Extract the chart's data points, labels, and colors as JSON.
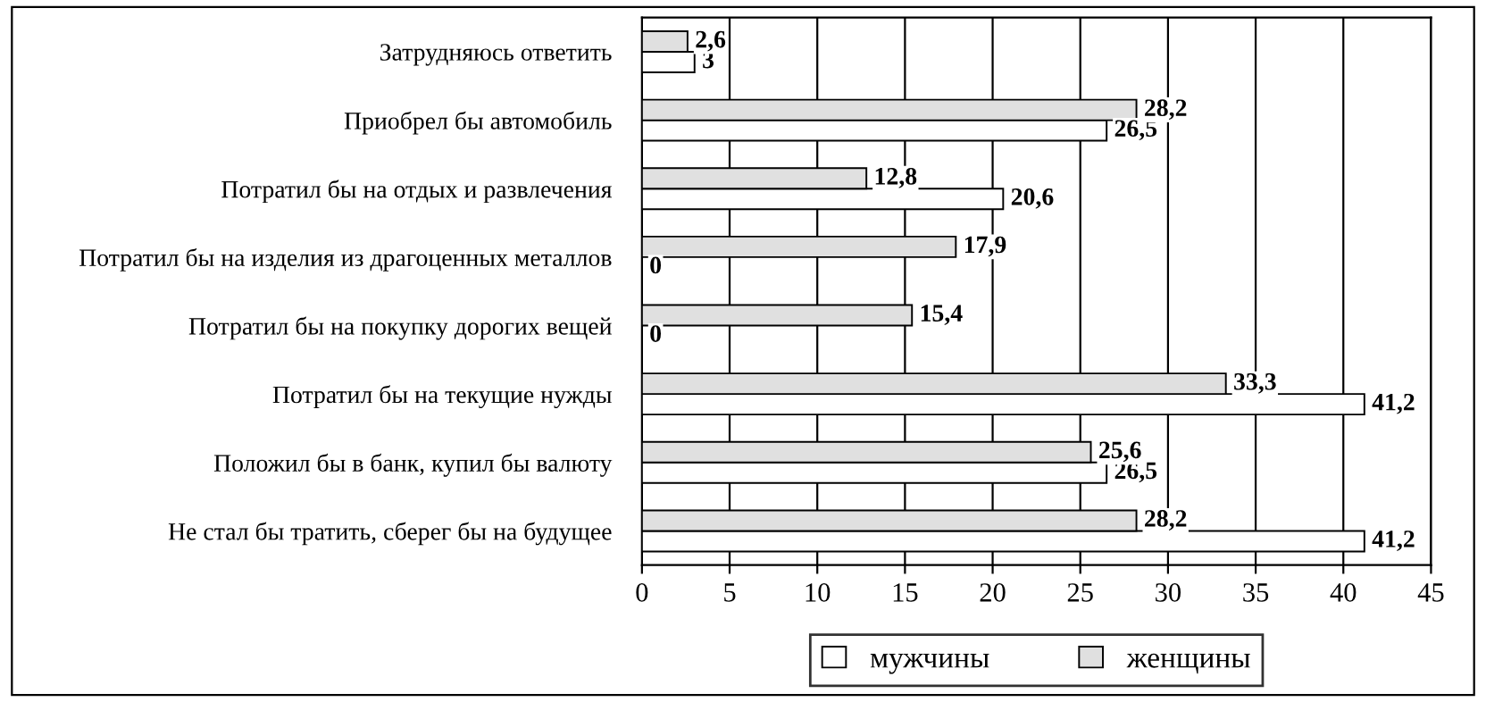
{
  "chart_data": {
    "type": "bar",
    "orientation": "horizontal",
    "categories": [
      "Затрудняюсь ответить",
      "Приобрел бы автомобиль",
      "Потратил бы на отдых и развлечения",
      "Потратил бы на изделия из драгоценных металлов",
      "Потратил бы на покупку дорогих вещей",
      "Потратил бы на текущие нужды",
      "Положил бы в банк, купил бы валюту",
      "Не стал бы тратить, сберег бы на будущее"
    ],
    "series": [
      {
        "name": "мужчины",
        "color": "#ffffff",
        "values": [
          3,
          26.5,
          20.6,
          0,
          0,
          41.2,
          26.5,
          41.2
        ],
        "value_labels": [
          "3",
          "26,5",
          "20,6",
          "0",
          "0",
          "41,2",
          "26,5",
          "41,2"
        ]
      },
      {
        "name": "женщины",
        "color": "#e0e0e0",
        "values": [
          2.6,
          28.2,
          12.8,
          17.9,
          15.4,
          33.3,
          25.6,
          28.2
        ],
        "value_labels": [
          "2,6",
          "28,2",
          "12,8",
          "17,9",
          "15,4",
          "33,3",
          "25,6",
          "28,2"
        ]
      }
    ],
    "xlim": [
      0,
      45
    ],
    "xticks": [
      0,
      5,
      10,
      15,
      20,
      25,
      30,
      35,
      40,
      45
    ],
    "grid": "x",
    "legend": "bottom"
  }
}
